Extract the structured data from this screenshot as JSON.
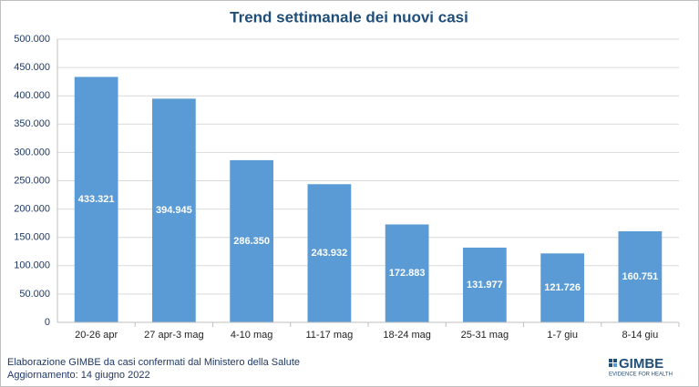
{
  "chart_data": {
    "type": "bar",
    "title": "Trend settimanale dei nuovi casi",
    "categories": [
      "20-26 apr",
      "27 apr-3 mag",
      "4-10 mag",
      "11-17 mag",
      "18-24 mag",
      "25-31 mag",
      "1-7 giu",
      "8-14 giu"
    ],
    "values": [
      433321,
      394945,
      286350,
      243932,
      172883,
      131977,
      121726,
      160751
    ],
    "value_labels": [
      "433.321",
      "394.945",
      "286.350",
      "243.932",
      "172.883",
      "131.977",
      "121.726",
      "160.751"
    ],
    "color": "#5b9bd5",
    "ylim": [
      0,
      500000
    ],
    "yticks": [
      0,
      {
        "value": 50000,
        "label": "50.000"
      },
      {
        "value": 100000,
        "label": "100.000"
      },
      {
        "value": 150000,
        "label": "150.000"
      },
      {
        "value": 200000,
        "label": "200.000"
      },
      {
        "value": 250000,
        "label": "250.000"
      },
      {
        "value": 300000,
        "label": "300.000"
      },
      {
        "value": 350000,
        "label": "350.000"
      },
      {
        "value": 400000,
        "label": "400.000"
      },
      {
        "value": 450000,
        "label": "450.000"
      },
      {
        "value": 500000,
        "label": "500.000"
      }
    ],
    "grid": true,
    "notes": [
      "Elaborazione GIMBE da casi confermati dal Ministero della Salute",
      "Aggiornamento: 14 giugno 2022"
    ],
    "logo": {
      "name": "GIMBE",
      "tagline": "EVIDENCE FOR HEALTH"
    }
  }
}
